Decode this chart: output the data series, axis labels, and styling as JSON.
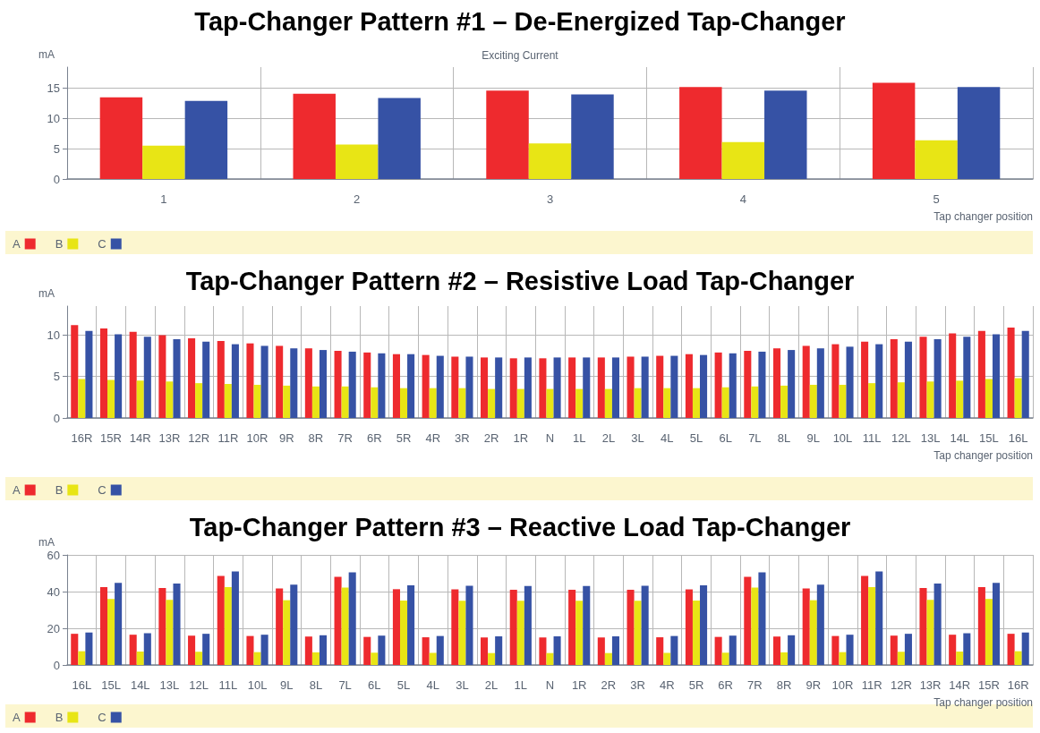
{
  "chart_data": [
    {
      "type": "bar",
      "title": "Tap-Changer Pattern #1 – De-Energized Tap-Changer",
      "subtitle": "Exciting Current",
      "ylabel": "mA",
      "xlabel": "Tap changer position",
      "categories": [
        "1",
        "2",
        "3",
        "4",
        "5"
      ],
      "series": [
        {
          "name": "A",
          "color": "#ee2a2e",
          "values": [
            13.5,
            14.1,
            14.6,
            15.2,
            15.9
          ]
        },
        {
          "name": "B",
          "color": "#e8e515",
          "values": [
            5.5,
            5.7,
            5.9,
            6.1,
            6.4
          ]
        },
        {
          "name": "C",
          "color": "#3652a5",
          "values": [
            12.9,
            13.4,
            14.0,
            14.6,
            15.2
          ]
        }
      ],
      "ylim": [
        0,
        18.5
      ],
      "yticks": [
        0,
        5,
        10,
        15
      ],
      "grid": true,
      "legend": "bottom left"
    },
    {
      "type": "bar",
      "title": "Tap-Changer Pattern #2 – Resistive Load Tap-Changer",
      "ylabel": "mA",
      "xlabel": "Tap changer position",
      "categories": [
        "16R",
        "15R",
        "14R",
        "13R",
        "12R",
        "11R",
        "10R",
        "9R",
        "8R",
        "7R",
        "6R",
        "5R",
        "4R",
        "3R",
        "2R",
        "1R",
        "N",
        "1L",
        "2L",
        "3L",
        "4L",
        "5L",
        "6L",
        "7L",
        "8L",
        "9L",
        "10L",
        "11L",
        "12L",
        "13L",
        "14L",
        "15L",
        "16L"
      ],
      "series": [
        {
          "name": "A",
          "color": "#ee2a2e",
          "values": [
            11.2,
            10.8,
            10.4,
            10.0,
            9.6,
            9.3,
            9.0,
            8.7,
            8.4,
            8.1,
            7.9,
            7.7,
            7.6,
            7.4,
            7.3,
            7.2,
            7.2,
            7.3,
            7.3,
            7.4,
            7.5,
            7.7,
            7.9,
            8.1,
            8.4,
            8.7,
            8.9,
            9.2,
            9.5,
            9.8,
            10.2,
            10.5,
            10.9
          ]
        },
        {
          "name": "B",
          "color": "#e8e515",
          "values": [
            4.7,
            4.6,
            4.5,
            4.4,
            4.2,
            4.1,
            4.0,
            3.9,
            3.8,
            3.8,
            3.7,
            3.6,
            3.6,
            3.6,
            3.5,
            3.5,
            3.5,
            3.5,
            3.5,
            3.6,
            3.6,
            3.6,
            3.7,
            3.8,
            3.9,
            4.0,
            4.0,
            4.2,
            4.3,
            4.4,
            4.5,
            4.7,
            4.8
          ]
        },
        {
          "name": "C",
          "color": "#3652a5",
          "values": [
            10.5,
            10.1,
            9.8,
            9.5,
            9.2,
            8.9,
            8.7,
            8.4,
            8.2,
            8.0,
            7.8,
            7.7,
            7.5,
            7.4,
            7.3,
            7.3,
            7.3,
            7.3,
            7.3,
            7.4,
            7.5,
            7.6,
            7.8,
            8.0,
            8.2,
            8.4,
            8.6,
            8.9,
            9.2,
            9.5,
            9.8,
            10.1,
            10.5
          ]
        }
      ],
      "ylim": [
        0,
        13.5
      ],
      "yticks": [
        0,
        5,
        10
      ],
      "grid": true,
      "legend": "bottom left"
    },
    {
      "type": "bar",
      "title": "Tap-Changer Pattern #3 – Reactive Load Tap-Changer",
      "ylabel": "mA",
      "xlabel": "Tap changer position",
      "categories": [
        "16L",
        "15L",
        "14L",
        "13L",
        "12L",
        "11L",
        "10L",
        "9L",
        "8L",
        "7L",
        "6L",
        "5L",
        "4L",
        "3L",
        "2L",
        "1L",
        "N",
        "1R",
        "2R",
        "3R",
        "4R",
        "5R",
        "6R",
        "7R",
        "8R",
        "9R",
        "10R",
        "11R",
        "12R",
        "13R",
        "14R",
        "15R",
        "16R"
      ],
      "series": [
        {
          "name": "A",
          "color": "#ee2a2e",
          "values": [
            17,
            42.5,
            16.5,
            42,
            16,
            48.5,
            15.8,
            41.7,
            15.5,
            48,
            15.3,
            41.3,
            15.1,
            41.2,
            15,
            41,
            15,
            41,
            15,
            41,
            15.1,
            41.2,
            15.3,
            48,
            15.5,
            41.7,
            15.8,
            48.5,
            16,
            42,
            16.5,
            42.5,
            17
          ]
        },
        {
          "name": "B",
          "color": "#e8e515",
          "values": [
            7.5,
            36,
            7.3,
            35.5,
            7.2,
            42.5,
            7,
            35.3,
            6.9,
            42.2,
            6.7,
            35.1,
            6.6,
            35,
            6.5,
            35,
            6.5,
            35,
            6.5,
            35,
            6.6,
            35.1,
            6.7,
            42.2,
            6.9,
            35.3,
            7,
            42.5,
            7.2,
            35.5,
            7.3,
            36,
            7.5
          ]
        },
        {
          "name": "C",
          "color": "#3652a5",
          "values": [
            17.7,
            44.7,
            17.3,
            44.4,
            17,
            51,
            16.5,
            43.8,
            16.2,
            50.5,
            16,
            43.4,
            15.8,
            43.2,
            15.6,
            43,
            15.6,
            43,
            15.6,
            43.2,
            15.8,
            43.4,
            16,
            50.5,
            16.2,
            43.8,
            16.5,
            51,
            17,
            44.4,
            17.3,
            44.7,
            17.7
          ]
        }
      ],
      "ylim": [
        0,
        60
      ],
      "yticks": [
        0,
        20,
        40,
        60
      ],
      "grid": true,
      "legend": "bottom left"
    }
  ]
}
